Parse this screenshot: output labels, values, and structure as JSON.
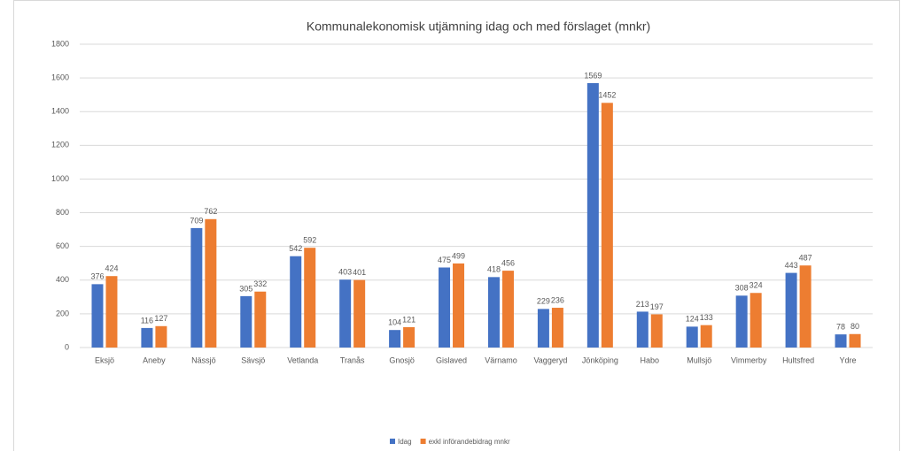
{
  "chart_data": {
    "type": "bar",
    "title": "Kommunalekonomisk utjämning idag och med förslaget (mnkr)",
    "categories": [
      "Eksjö",
      "Aneby",
      "Nässjö",
      "Sävsjö",
      "Vetlanda",
      "Tranås",
      "Gnosjö",
      "Gislaved",
      "Värnamo",
      "Vaggeryd",
      "Jönköping",
      "Habo",
      "Mullsjö",
      "Vimmerby",
      "Hultsfred",
      "Ydre"
    ],
    "series": [
      {
        "name": "Idag",
        "color": "#4472c4",
        "values": [
          376,
          116,
          709,
          305,
          542,
          403,
          104,
          475,
          418,
          229,
          1569,
          213,
          124,
          308,
          443,
          78
        ]
      },
      {
        "name": "exkl införandebidrag mnkr",
        "color": "#ed7d31",
        "values": [
          424,
          127,
          762,
          332,
          592,
          401,
          121,
          499,
          456,
          236,
          1452,
          197,
          133,
          324,
          487,
          80
        ]
      }
    ],
    "ylim": [
      0,
      1800
    ],
    "yticks": [
      0,
      200,
      400,
      600,
      800,
      1000,
      1200,
      1400,
      1600,
      1800
    ],
    "grid": true,
    "legend": "bottom"
  }
}
